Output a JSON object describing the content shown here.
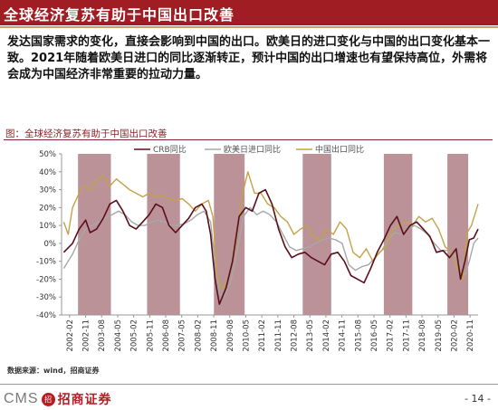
{
  "header": {
    "title": "全球经济复苏有助于中国出口改善"
  },
  "body": {
    "paragraph": "发达国家需求的变化，直接会影响到中国的出口。欧美日的进口变化与中国的出口变化基本一致。2021年随着欧美日进口的同比逐渐转正，预计中国的出口增速也有望保持高位，外需将会成为中国经济非常重要的拉动力量。"
  },
  "chart_title": "图：全球经济复苏有助于中国出口改善",
  "source": "数据来源：wind，招商证券",
  "footer": {
    "logo_text": "CMS",
    "logo_badge": "招",
    "logo_name": "招商证券",
    "page_number": "- 14 -"
  },
  "colors": {
    "header_bg": "#a01e23",
    "crb": "#5a0f1a",
    "imports": "#a8a8a8",
    "china_exports": "#c4a24a",
    "shade": "#ae7f86"
  },
  "chart_data": {
    "type": "line",
    "title": "",
    "xlabel": "",
    "ylabel": "",
    "ylim": [
      -40,
      50
    ],
    "yticks": [
      "50%",
      "40%",
      "30%",
      "20%",
      "10%",
      "0%",
      "-10%",
      "-20%",
      "-30%",
      "-40%"
    ],
    "x_ticks": [
      "2002-02",
      "2002-11",
      "2003-08",
      "2004-05",
      "2005-02",
      "2005-11",
      "2006-08",
      "2007-05",
      "2008-02",
      "2008-11",
      "2009-08",
      "2010-05",
      "2011-02",
      "2011-11",
      "2012-08",
      "2013-05",
      "2014-02",
      "2014-11",
      "2015-08",
      "2016-05",
      "2017-02",
      "2017-11",
      "2018-08",
      "2019-05",
      "2020-02",
      "2020-11"
    ],
    "grid": false,
    "legend": "top",
    "shaded_periods": [
      {
        "start": 2002.75,
        "end": 2004.25
      },
      {
        "start": 2005.9,
        "end": 2007.4
      },
      {
        "start": 2008.95,
        "end": 2010.35
      },
      {
        "start": 2013.0,
        "end": 2014.3
      },
      {
        "start": 2016.7,
        "end": 2018.0
      },
      {
        "start": 2019.6,
        "end": 2020.55
      }
    ],
    "series": [
      {
        "name": "CRB同比",
        "key": "crb",
        "x": [
          2002.1,
          2002.5,
          2002.8,
          2003.1,
          2003.3,
          2003.6,
          2003.9,
          2004.2,
          2004.5,
          2004.8,
          2005.1,
          2005.4,
          2005.7,
          2006.0,
          2006.3,
          2006.6,
          2006.9,
          2007.2,
          2007.5,
          2007.8,
          2008.1,
          2008.4,
          2008.6,
          2008.8,
          2009.0,
          2009.2,
          2009.5,
          2009.8,
          2010.1,
          2010.4,
          2010.7,
          2011.0,
          2011.3,
          2011.6,
          2011.9,
          2012.2,
          2012.5,
          2012.8,
          2013.1,
          2013.4,
          2013.7,
          2014.0,
          2014.3,
          2014.6,
          2014.9,
          2015.2,
          2015.5,
          2015.8,
          2016.1,
          2016.4,
          2016.7,
          2017.0,
          2017.3,
          2017.6,
          2017.9,
          2018.2,
          2018.5,
          2018.8,
          2019.1,
          2019.4,
          2019.7,
          2020.0,
          2020.2,
          2020.4,
          2020.6,
          2020.8,
          2021.0
        ],
        "y": [
          -5,
          0,
          8,
          13,
          6,
          8,
          14,
          22,
          24,
          18,
          10,
          8,
          12,
          16,
          22,
          20,
          10,
          6,
          10,
          14,
          20,
          22,
          18,
          5,
          -20,
          -34,
          -25,
          -10,
          15,
          20,
          18,
          28,
          30,
          22,
          8,
          -2,
          -8,
          -6,
          -5,
          -8,
          -10,
          -12,
          -6,
          -5,
          -10,
          -18,
          -20,
          -22,
          -14,
          -5,
          2,
          10,
          15,
          5,
          10,
          12,
          8,
          4,
          -5,
          -4,
          -8,
          -3,
          -20,
          -10,
          2,
          3,
          8
        ]
      },
      {
        "name": "欧美日进口同比",
        "key": "imports",
        "x": [
          2002.1,
          2002.5,
          2002.8,
          2003.1,
          2003.4,
          2003.7,
          2004.0,
          2004.3,
          2004.6,
          2004.9,
          2005.2,
          2005.5,
          2005.8,
          2006.1,
          2006.4,
          2006.7,
          2007.0,
          2007.3,
          2007.6,
          2007.9,
          2008.2,
          2008.5,
          2008.8,
          2009.0,
          2009.2,
          2009.4,
          2009.7,
          2010.0,
          2010.3,
          2010.6,
          2010.9,
          2011.2,
          2011.5,
          2011.8,
          2012.1,
          2012.4,
          2012.7,
          2013.0,
          2013.3,
          2013.6,
          2013.9,
          2014.2,
          2014.5,
          2014.8,
          2015.1,
          2015.4,
          2015.7,
          2016.0,
          2016.3,
          2016.6,
          2016.9,
          2017.2,
          2017.5,
          2017.8,
          2018.1,
          2018.4,
          2018.7,
          2019.0,
          2019.3,
          2019.6,
          2019.9,
          2020.2,
          2020.4,
          2020.6,
          2020.8,
          2021.0
        ],
        "y": [
          -14,
          -6,
          2,
          8,
          10,
          12,
          14,
          16,
          18,
          16,
          12,
          10,
          10,
          12,
          13,
          12,
          10,
          10,
          11,
          13,
          16,
          18,
          12,
          -10,
          -28,
          -30,
          -22,
          -5,
          15,
          20,
          16,
          18,
          16,
          12,
          5,
          -2,
          -4,
          -3,
          -2,
          0,
          2,
          3,
          2,
          0,
          -12,
          -15,
          -13,
          -12,
          -8,
          -4,
          2,
          6,
          5,
          8,
          10,
          8,
          5,
          0,
          -4,
          -4,
          -6,
          -12,
          -18,
          -10,
          0,
          3
        ]
      },
      {
        "name": "中国出口同比",
        "key": "china_exports",
        "x": [
          2002.1,
          2002.3,
          2002.5,
          2002.8,
          2003.0,
          2003.3,
          2003.6,
          2003.9,
          2004.2,
          2004.5,
          2004.8,
          2005.1,
          2005.4,
          2005.7,
          2006.0,
          2006.3,
          2006.6,
          2006.9,
          2007.2,
          2007.5,
          2007.8,
          2008.1,
          2008.4,
          2008.7,
          2008.9,
          2009.1,
          2009.3,
          2009.6,
          2009.9,
          2010.2,
          2010.5,
          2010.8,
          2011.1,
          2011.4,
          2011.7,
          2012.0,
          2012.3,
          2012.6,
          2012.9,
          2013.2,
          2013.5,
          2013.8,
          2014.1,
          2014.4,
          2014.7,
          2015.0,
          2015.3,
          2015.6,
          2015.9,
          2016.2,
          2016.5,
          2016.8,
          2017.1,
          2017.4,
          2017.7,
          2018.0,
          2018.3,
          2018.6,
          2018.9,
          2019.2,
          2019.5,
          2019.8,
          2020.1,
          2020.3,
          2020.5,
          2020.7,
          2020.9,
          2021.0
        ],
        "y": [
          12,
          5,
          20,
          28,
          32,
          30,
          35,
          38,
          32,
          36,
          33,
          30,
          28,
          26,
          28,
          26,
          27,
          25,
          24,
          25,
          22,
          18,
          22,
          24,
          15,
          -18,
          -26,
          -20,
          -5,
          25,
          40,
          28,
          28,
          22,
          20,
          15,
          12,
          5,
          8,
          10,
          3,
          2,
          8,
          5,
          12,
          8,
          -5,
          -8,
          -3,
          -10,
          -5,
          -2,
          8,
          10,
          12,
          10,
          15,
          12,
          14,
          8,
          -2,
          -5,
          -15,
          -20,
          6,
          10,
          18,
          22
        ]
      }
    ]
  }
}
